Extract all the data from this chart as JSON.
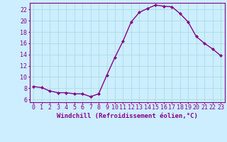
{
  "x": [
    0,
    1,
    2,
    3,
    4,
    5,
    6,
    7,
    8,
    9,
    10,
    11,
    12,
    13,
    14,
    15,
    16,
    17,
    18,
    19,
    20,
    21,
    22,
    23
  ],
  "y": [
    8.3,
    8.1,
    7.5,
    7.2,
    7.2,
    7.0,
    7.0,
    6.5,
    7.0,
    10.3,
    13.5,
    16.4,
    19.8,
    21.5,
    22.2,
    22.8,
    22.6,
    22.5,
    21.3,
    19.8,
    17.2,
    16.0,
    15.0,
    13.8
  ],
  "line_color": "#880088",
  "marker": "D",
  "marker_size": 2.0,
  "linewidth": 1.0,
  "bg_color": "#cceeff",
  "grid_color": "#aadddd",
  "xlabel": "Windchill (Refroidissement éolien,°C)",
  "xlabel_fontsize": 6.5,
  "tick_fontsize": 6.0,
  "ylim": [
    5.5,
    23.2
  ],
  "yticks": [
    6,
    8,
    10,
    12,
    14,
    16,
    18,
    20,
    22
  ],
  "xticks": [
    0,
    1,
    2,
    3,
    4,
    5,
    6,
    7,
    8,
    9,
    10,
    11,
    12,
    13,
    14,
    15,
    16,
    17,
    18,
    19,
    20,
    21,
    22,
    23
  ]
}
